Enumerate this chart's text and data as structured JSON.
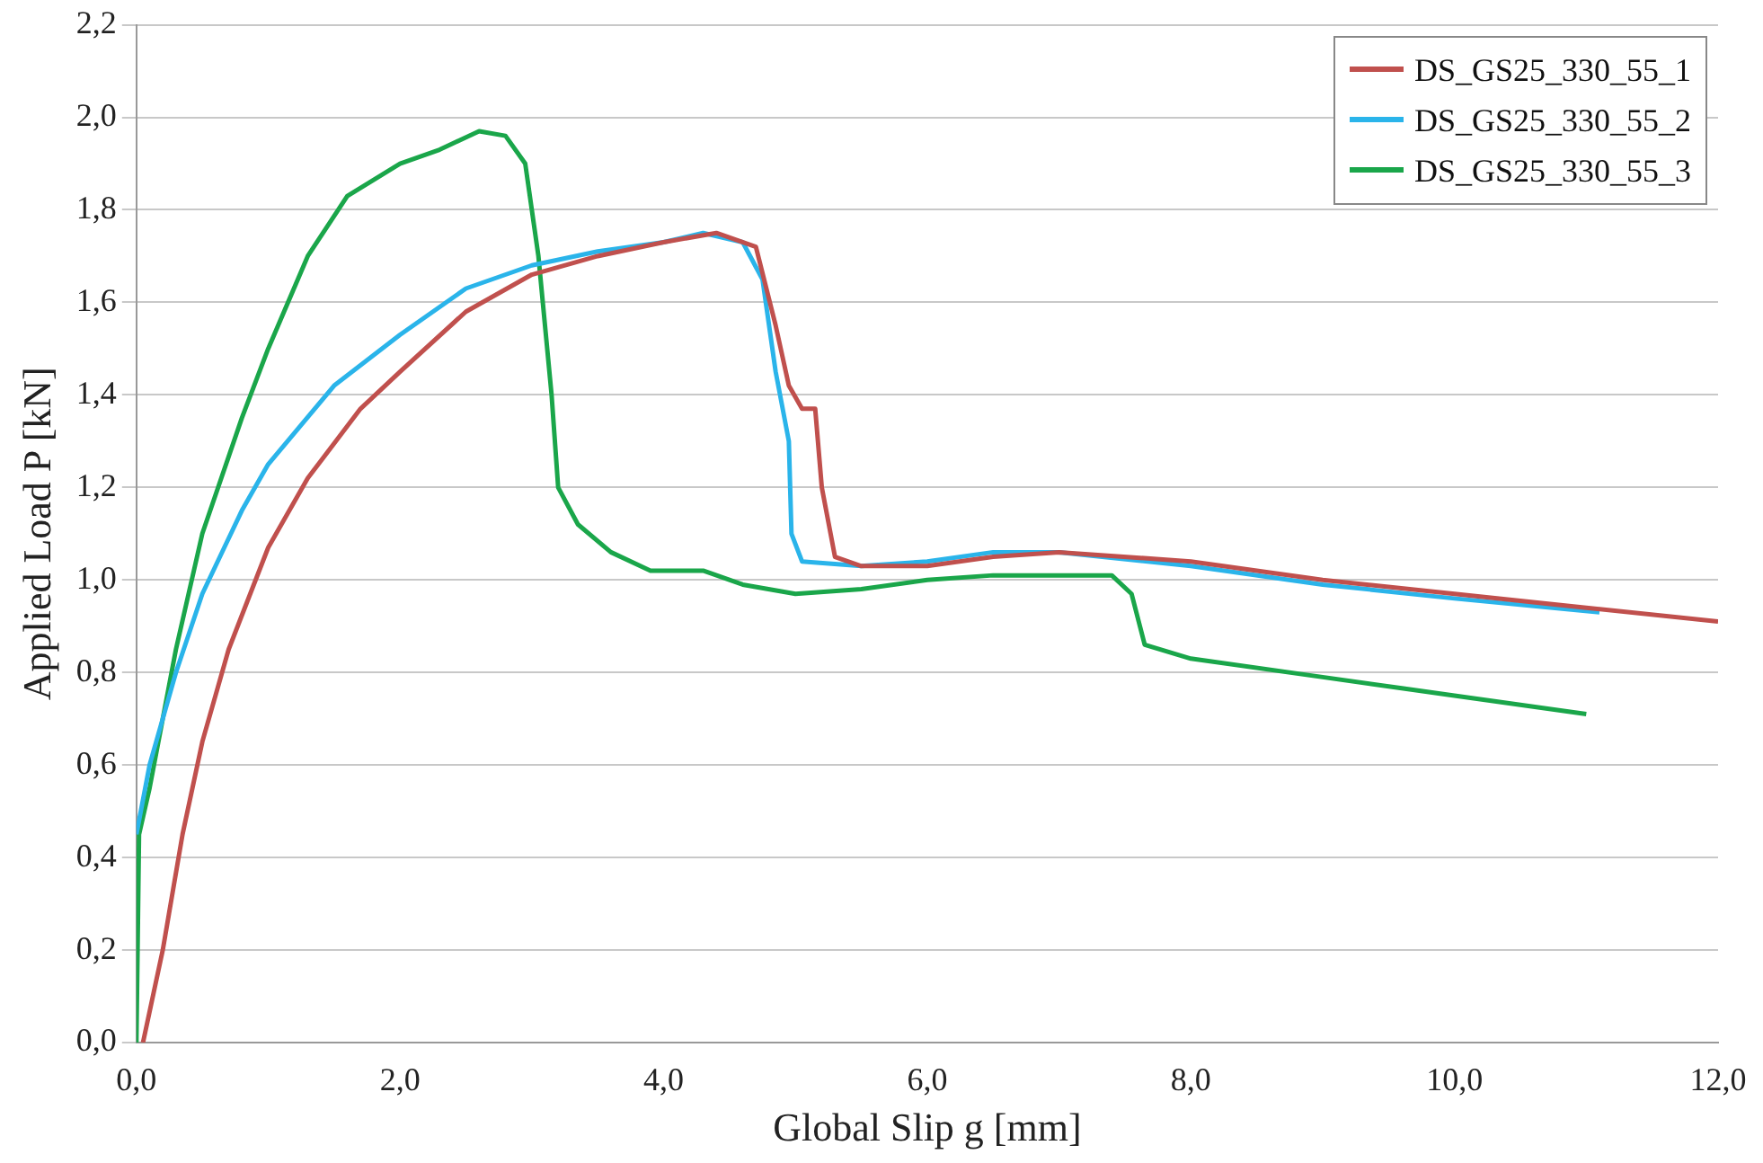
{
  "chart_data": {
    "type": "line",
    "xlabel": "Global Slip g [mm]",
    "ylabel": "Applied Load P [kN]",
    "xlim": [
      0,
      12
    ],
    "xticks": [
      {
        "value": 0,
        "label": "0,0"
      },
      {
        "value": 2,
        "label": "2,0"
      },
      {
        "value": 4,
        "label": "4,0"
      },
      {
        "value": 6,
        "label": "6,0"
      },
      {
        "value": 8,
        "label": "8,0"
      },
      {
        "value": 10,
        "label": "10,0"
      },
      {
        "value": 12,
        "label": "12,0"
      }
    ],
    "ylim": [
      0,
      2.2
    ],
    "yticks": [
      {
        "value": 0,
        "label": "0,0"
      },
      {
        "value": 0.2,
        "label": "0,2"
      },
      {
        "value": 0.4,
        "label": "0,4"
      },
      {
        "value": 0.6,
        "label": "0,6"
      },
      {
        "value": 0.8,
        "label": "0,8"
      },
      {
        "value": 1,
        "label": "1,0"
      },
      {
        "value": 1.2,
        "label": "1,2"
      },
      {
        "value": 1.4,
        "label": "1,4"
      },
      {
        "value": 1.6,
        "label": "1,6"
      },
      {
        "value": 1.8,
        "label": "1,8"
      },
      {
        "value": 2,
        "label": "2,0"
      },
      {
        "value": 2.2,
        "label": "2,2"
      }
    ],
    "grid": "y",
    "legend": "top right",
    "marker": "none",
    "line_style": "solid",
    "series": [
      {
        "name": "DS_GS25_330_55_1",
        "color": "#c0504d",
        "x": [
          0.05,
          0.2,
          0.35,
          0.5,
          0.7,
          1.0,
          1.3,
          1.7,
          2.0,
          2.5,
          3.0,
          3.5,
          4.0,
          4.4,
          4.7,
          4.85,
          4.95,
          5.05,
          5.15,
          5.2,
          5.3,
          5.5,
          6.0,
          6.5,
          7.0,
          8.0,
          9.0,
          10.0,
          11.0,
          12.0
        ],
        "values": [
          0,
          0.2,
          0.45,
          0.65,
          0.85,
          1.07,
          1.22,
          1.37,
          1.45,
          1.58,
          1.66,
          1.7,
          1.73,
          1.75,
          1.72,
          1.55,
          1.42,
          1.37,
          1.37,
          1.2,
          1.05,
          1.03,
          1.03,
          1.05,
          1.06,
          1.04,
          1.0,
          0.97,
          0.94,
          0.91
        ]
      },
      {
        "name": "DS_GS25_330_55_2",
        "color": "#2ab4ea",
        "x": [
          0,
          0.1,
          0.3,
          0.5,
          0.8,
          1.0,
          1.5,
          2.0,
          2.5,
          3.0,
          3.5,
          4.0,
          4.3,
          4.6,
          4.75,
          4.85,
          4.95,
          4.97,
          5.05,
          5.5,
          6.0,
          6.5,
          7.0,
          8.0,
          9.0,
          10.0,
          11.1
        ],
        "values": [
          0.45,
          0.6,
          0.8,
          0.97,
          1.15,
          1.25,
          1.42,
          1.53,
          1.63,
          1.68,
          1.71,
          1.73,
          1.75,
          1.73,
          1.65,
          1.45,
          1.3,
          1.1,
          1.04,
          1.03,
          1.04,
          1.06,
          1.06,
          1.03,
          0.99,
          0.96,
          0.93
        ]
      },
      {
        "name": "DS_GS25_330_55_3",
        "color": "#1aa64a",
        "x": [
          0,
          0.02,
          0.1,
          0.3,
          0.5,
          0.8,
          1.0,
          1.3,
          1.6,
          2.0,
          2.3,
          2.6,
          2.8,
          2.95,
          3.05,
          3.15,
          3.2,
          3.35,
          3.6,
          3.9,
          4.3,
          4.6,
          5.0,
          5.5,
          6.0,
          6.5,
          7.0,
          7.4,
          7.55,
          7.65,
          8.0,
          9.0,
          10.0,
          11.0
        ],
        "values": [
          0,
          0.45,
          0.55,
          0.85,
          1.1,
          1.35,
          1.5,
          1.7,
          1.83,
          1.9,
          1.93,
          1.97,
          1.96,
          1.9,
          1.7,
          1.4,
          1.2,
          1.12,
          1.06,
          1.02,
          1.02,
          0.99,
          0.97,
          0.98,
          1.0,
          1.01,
          1.01,
          1.01,
          0.97,
          0.86,
          0.83,
          0.79,
          0.75,
          0.71
        ]
      }
    ]
  }
}
